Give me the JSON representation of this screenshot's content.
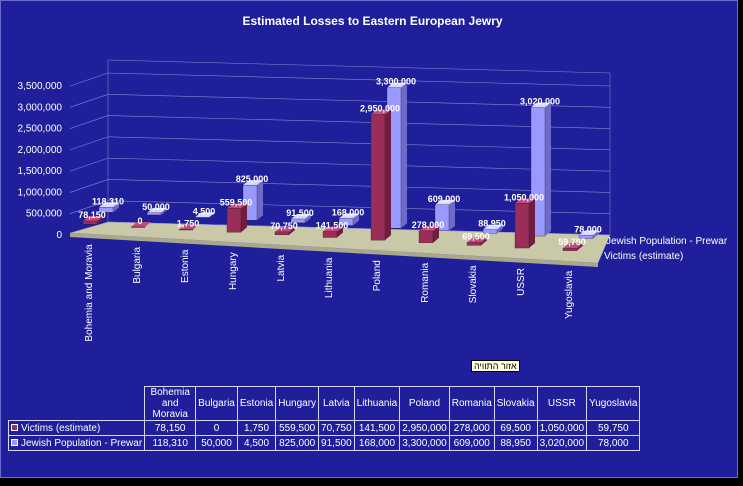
{
  "chart_data": {
    "type": "bar",
    "title": "Estimated Losses to Eastern European Jewry",
    "categories": [
      "Bohemia and Moravia",
      "Bulgaria",
      "Estonia",
      "Hungary",
      "Latvia",
      "Lithuania",
      "Poland",
      "Romania",
      "Slovakia",
      "USSR",
      "Yugoslavia"
    ],
    "category_table_labels": [
      "Bohemia and Moravia",
      "Bulgaria",
      "Estonia",
      "Hungary",
      "Latvia",
      "Lithuania",
      "Poland",
      "Romania",
      "Slovakia",
      "USSR",
      "Yugoslavia"
    ],
    "series": [
      {
        "name": "Victims (estimate)",
        "color": "#9b2d59",
        "values": [
          78150,
          0,
          1750,
          559500,
          70750,
          141500,
          2950000,
          278000,
          69500,
          1050000,
          59750
        ],
        "labels": [
          "78,150",
          "0",
          "1,750",
          "559,500",
          "70,750",
          "141,500",
          "2,950,000",
          "278,000",
          "69,500",
          "1,050,000",
          "59,750"
        ]
      },
      {
        "name": "Jewish Population - Prewar",
        "color": "#9999ff",
        "values": [
          118310,
          50000,
          4500,
          825000,
          91500,
          168000,
          3300000,
          609000,
          88950,
          3020000,
          78000
        ],
        "labels": [
          "118,310",
          "50,000",
          "4,500",
          "825,000",
          "91,500",
          "168,000",
          "3,300,000",
          "609,000",
          "88,950",
          "3,020,000",
          "78,000"
        ]
      }
    ],
    "depth_labels": [
      "Jewish Population - Prewar",
      "Victims (estimate)"
    ],
    "y_ticks": [
      "0",
      "500,000",
      "1,000,000",
      "1,500,000",
      "2,000,000",
      "2,500,000",
      "3,000,000",
      "3,500,000"
    ],
    "ylim": [
      0,
      3500000
    ],
    "grid": true,
    "legend": "data-table"
  },
  "tooltip": "אזור התוויה",
  "table": {
    "headers": [
      "Bohemia and Moravia",
      "Bulgaria",
      "Estonia",
      "Hungary",
      "Latvia",
      "Lithuania",
      "Poland",
      "Romania",
      "Slovakia",
      "USSR",
      "Yugoslavia"
    ],
    "rows": [
      {
        "label": "Victims (estimate)",
        "color": "#9b2d59",
        "cells": [
          "78,150",
          "0",
          "1,750",
          "559,500",
          "70,750",
          "141,500",
          "2,950,000",
          "278,000",
          "69,500",
          "1,050,000",
          "59,750"
        ]
      },
      {
        "label": "Jewish Population - Prewar",
        "color": "#9999ff",
        "cells": [
          "118,310",
          "50,000",
          "4,500",
          "825,000",
          "91,500",
          "168,000",
          "3,300,000",
          "609,000",
          "88,950",
          "3,020,000",
          "78,000"
        ]
      }
    ]
  }
}
